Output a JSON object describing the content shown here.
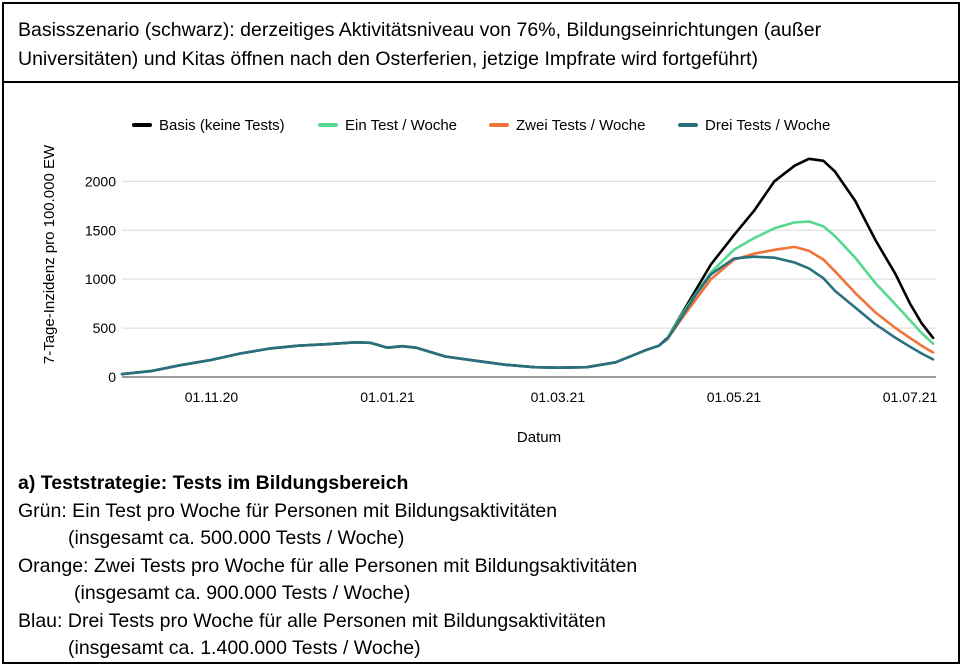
{
  "header": {
    "text": "Basisszenario (schwarz): derzeitiges Aktivitätsniveau von 76%, Bildungseinrichtungen (außer Universitäten) und Kitas öffnen nach den Osterferien, jetzige Impfrate wird fortgeführt)"
  },
  "notes": {
    "heading": "a) Teststrategie: Tests im Bildungsbereich",
    "green_line": "Grün: Ein Test pro Woche für Personen mit Bildungsaktivitäten",
    "green_total": "(insgesamt ca. 500.000 Tests / Woche)",
    "orange_line": "Orange: Zwei Tests pro Woche für alle Personen mit Bildungsaktivitäten",
    "orange_total": "(insgesamt ca. 900.000 Tests / Woche)",
    "blue_line": "Blau: Drei Tests pro Woche für alle Personen mit Bildungsaktivitäten",
    "blue_total": "(insgesamt ca. 1.400.000 Tests / Woche)"
  },
  "chart_data": {
    "type": "line",
    "xlabel": "Datum",
    "ylabel": "7-Tage-Inzidenz pro 100.000 EW",
    "ylim": [
      0,
      2300
    ],
    "xlim": [
      "2020-10-01",
      "2021-07-10"
    ],
    "x_ticks": [
      "01.11.20",
      "01.01.21",
      "01.03.21",
      "01.05.21",
      "01.07.21"
    ],
    "x_tick_dates": [
      "2020-11-01",
      "2021-01-01",
      "2021-03-01",
      "2021-05-01",
      "2021-07-01"
    ],
    "y_ticks": [
      0,
      500,
      1000,
      1500,
      2000
    ],
    "grid": true,
    "legend_position": "top",
    "series": [
      {
        "name": "Basis (keine Tests)",
        "color": "#000000",
        "points": [
          [
            "2020-10-01",
            30
          ],
          [
            "2020-10-11",
            60
          ],
          [
            "2020-10-21",
            120
          ],
          [
            "2020-11-01",
            175
          ],
          [
            "2020-11-11",
            240
          ],
          [
            "2020-11-21",
            290
          ],
          [
            "2020-12-01",
            320
          ],
          [
            "2020-12-11",
            335
          ],
          [
            "2020-12-21",
            355
          ],
          [
            "2020-12-26",
            350
          ],
          [
            "2021-01-01",
            300
          ],
          [
            "2021-01-06",
            315
          ],
          [
            "2021-01-11",
            300
          ],
          [
            "2021-01-21",
            210
          ],
          [
            "2021-02-01",
            165
          ],
          [
            "2021-02-11",
            125
          ],
          [
            "2021-02-21",
            100
          ],
          [
            "2021-03-01",
            95
          ],
          [
            "2021-03-11",
            100
          ],
          [
            "2021-03-21",
            150
          ],
          [
            "2021-04-01",
            280
          ],
          [
            "2021-04-05",
            320
          ],
          [
            "2021-04-08",
            400
          ],
          [
            "2021-04-13",
            650
          ],
          [
            "2021-04-18",
            900
          ],
          [
            "2021-04-23",
            1150
          ],
          [
            "2021-05-01",
            1450
          ],
          [
            "2021-05-08",
            1700
          ],
          [
            "2021-05-15",
            2000
          ],
          [
            "2021-05-22",
            2160
          ],
          [
            "2021-05-27",
            2230
          ],
          [
            "2021-06-01",
            2210
          ],
          [
            "2021-06-05",
            2100
          ],
          [
            "2021-06-12",
            1800
          ],
          [
            "2021-06-19",
            1400
          ],
          [
            "2021-06-26",
            1050
          ],
          [
            "2021-07-01",
            750
          ],
          [
            "2021-07-05",
            550
          ],
          [
            "2021-07-09",
            400
          ]
        ]
      },
      {
        "name": "Ein Test / Woche",
        "color": "#57d98d",
        "points": [
          [
            "2021-04-08",
            400
          ],
          [
            "2021-04-13",
            640
          ],
          [
            "2021-04-18",
            860
          ],
          [
            "2021-04-23",
            1070
          ],
          [
            "2021-05-01",
            1300
          ],
          [
            "2021-05-08",
            1420
          ],
          [
            "2021-05-15",
            1520
          ],
          [
            "2021-05-22",
            1580
          ],
          [
            "2021-05-27",
            1590
          ],
          [
            "2021-06-01",
            1540
          ],
          [
            "2021-06-05",
            1440
          ],
          [
            "2021-06-12",
            1220
          ],
          [
            "2021-06-19",
            960
          ],
          [
            "2021-06-26",
            740
          ],
          [
            "2021-07-01",
            580
          ],
          [
            "2021-07-05",
            450
          ],
          [
            "2021-07-09",
            340
          ]
        ]
      },
      {
        "name": "Zwei Tests / Woche",
        "color": "#f0733a",
        "points": [
          [
            "2021-04-08",
            390
          ],
          [
            "2021-04-13",
            600
          ],
          [
            "2021-04-18",
            800
          ],
          [
            "2021-04-23",
            1000
          ],
          [
            "2021-05-01",
            1200
          ],
          [
            "2021-05-08",
            1260
          ],
          [
            "2021-05-15",
            1300
          ],
          [
            "2021-05-22",
            1330
          ],
          [
            "2021-05-27",
            1290
          ],
          [
            "2021-06-01",
            1200
          ],
          [
            "2021-06-05",
            1080
          ],
          [
            "2021-06-12",
            860
          ],
          [
            "2021-06-19",
            660
          ],
          [
            "2021-06-26",
            500
          ],
          [
            "2021-07-01",
            400
          ],
          [
            "2021-07-05",
            320
          ],
          [
            "2021-07-09",
            250
          ]
        ]
      },
      {
        "name": "Drei Tests / Woche",
        "color": "#2a7180",
        "points": [
          [
            "2020-10-01",
            30
          ],
          [
            "2020-10-11",
            60
          ],
          [
            "2020-10-21",
            120
          ],
          [
            "2020-11-01",
            175
          ],
          [
            "2020-11-11",
            240
          ],
          [
            "2020-11-21",
            290
          ],
          [
            "2020-12-01",
            320
          ],
          [
            "2020-12-11",
            335
          ],
          [
            "2020-12-21",
            355
          ],
          [
            "2020-12-26",
            350
          ],
          [
            "2021-01-01",
            300
          ],
          [
            "2021-01-06",
            315
          ],
          [
            "2021-01-11",
            300
          ],
          [
            "2021-01-21",
            210
          ],
          [
            "2021-02-01",
            165
          ],
          [
            "2021-02-11",
            125
          ],
          [
            "2021-02-21",
            100
          ],
          [
            "2021-03-01",
            95
          ],
          [
            "2021-03-11",
            100
          ],
          [
            "2021-03-21",
            150
          ],
          [
            "2021-04-01",
            280
          ],
          [
            "2021-04-05",
            320
          ],
          [
            "2021-04-08",
            390
          ],
          [
            "2021-04-13",
            620
          ],
          [
            "2021-04-18",
            850
          ],
          [
            "2021-04-23",
            1050
          ],
          [
            "2021-05-01",
            1210
          ],
          [
            "2021-05-08",
            1230
          ],
          [
            "2021-05-15",
            1220
          ],
          [
            "2021-05-22",
            1170
          ],
          [
            "2021-05-27",
            1110
          ],
          [
            "2021-06-01",
            1010
          ],
          [
            "2021-06-05",
            880
          ],
          [
            "2021-06-12",
            710
          ],
          [
            "2021-06-19",
            540
          ],
          [
            "2021-06-26",
            400
          ],
          [
            "2021-07-01",
            310
          ],
          [
            "2021-07-05",
            240
          ],
          [
            "2021-07-09",
            180
          ]
        ]
      }
    ]
  }
}
